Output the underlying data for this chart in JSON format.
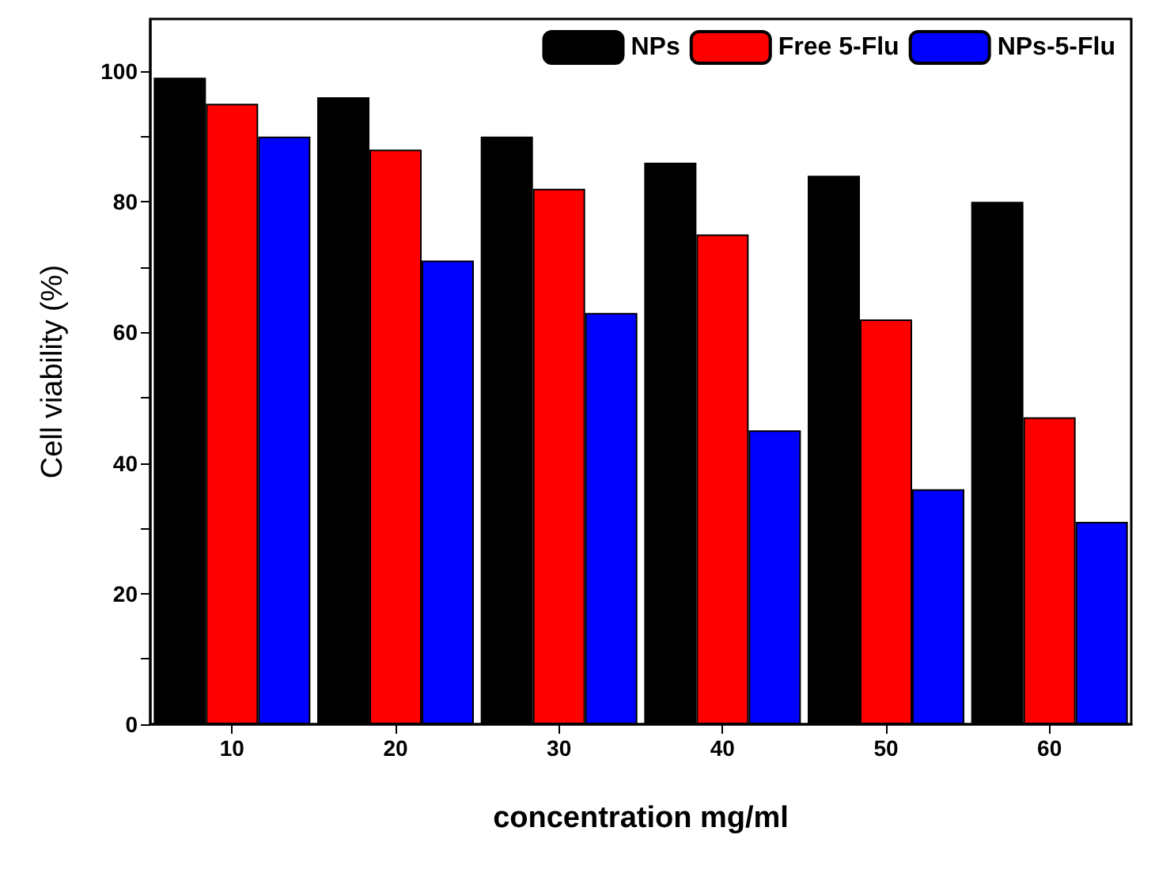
{
  "chart_data": {
    "type": "bar",
    "xlabel": "concentration mg/ml",
    "ylabel": "Cell viability (%)",
    "categories": [
      "10",
      "20",
      "30",
      "40",
      "50",
      "60"
    ],
    "series": [
      {
        "name": "NPs",
        "color": "#000000",
        "values": [
          99,
          96,
          90,
          86,
          84,
          80
        ]
      },
      {
        "name": "Free 5-Flu",
        "color": "#ff0000",
        "values": [
          95,
          88,
          82,
          75,
          62,
          47
        ]
      },
      {
        "name": "NPs-5-Flu",
        "color": "#0000ff",
        "values": [
          90,
          71,
          63,
          45,
          36,
          31
        ]
      }
    ],
    "ylim": [
      0,
      108
    ],
    "yticks": [
      0,
      {
        "value": 10,
        "label": null
      },
      20,
      {
        "value": 30,
        "label": null
      },
      40,
      {
        "value": 50,
        "label": null
      },
      60,
      {
        "value": 70,
        "label": null
      },
      80,
      {
        "value": 90,
        "label": null
      },
      100
    ],
    "grid": false,
    "legend": "top right"
  }
}
